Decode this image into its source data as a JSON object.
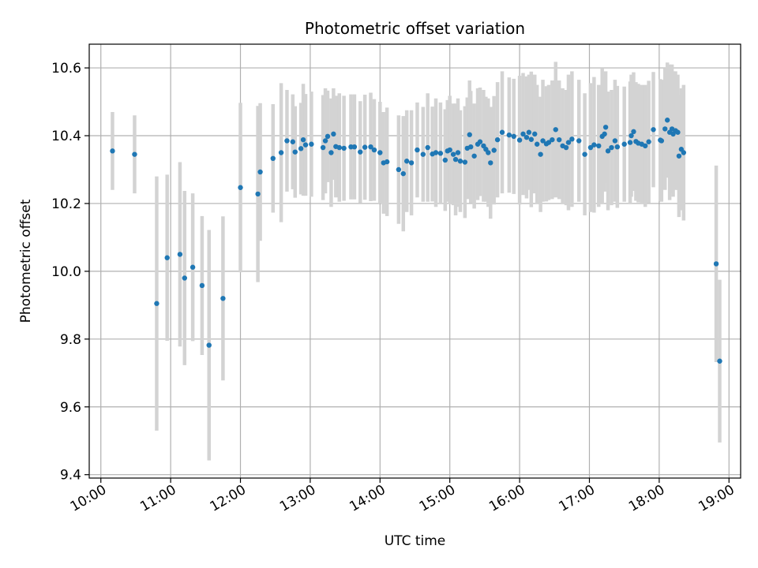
{
  "chart_data": {
    "type": "scatter",
    "title": "Photometric offset variation",
    "xlabel": "UTC time",
    "ylabel": "Photometric offset",
    "xlim": [
      "09:50",
      "19:10"
    ],
    "ylim": [
      9.39,
      10.67
    ],
    "grid": true,
    "x_ticks": [
      "10:00",
      "11:00",
      "12:00",
      "13:00",
      "14:00",
      "15:00",
      "16:00",
      "17:00",
      "18:00",
      "19:00"
    ],
    "y_ticks": [
      "9.4",
      "9.6",
      "9.8",
      "10.0",
      "10.2",
      "10.4",
      "10.6"
    ],
    "colors": {
      "marker": "#1f77b4",
      "errorbar": "#d3d3d3",
      "grid": "#b0b0b0"
    },
    "series": [
      {
        "x": [
          "10:10",
          "10:29",
          "10:48",
          "10:57",
          "11:08",
          "11:12",
          "11:19",
          "11:27",
          "11:33",
          "11:45",
          "12:00",
          "12:15",
          "12:17",
          "12:28",
          "12:35",
          "12:40",
          "12:45",
          "12:47",
          "12:52",
          "12:54",
          "12:56",
          "13:01",
          "13:11",
          "13:13",
          "13:15",
          "13:18",
          "13:20",
          "13:22",
          "13:25",
          "13:29",
          "13:35",
          "13:38",
          "13:43",
          "13:47",
          "13:52",
          "13:55",
          "14:00",
          "14:03",
          "14:06",
          "14:16",
          "14:20",
          "14:23",
          "14:27",
          "14:32",
          "14:37",
          "14:41",
          "14:45",
          "14:48",
          "14:52",
          "14:56",
          "14:58",
          "15:00",
          "15:03",
          "15:05",
          "15:07",
          "15:09",
          "15:13",
          "15:15",
          "15:17",
          "15:18",
          "15:21",
          "15:24",
          "15:26",
          "15:29",
          "15:31",
          "15:33",
          "15:35",
          "15:38",
          "15:41",
          "15:45",
          "15:51",
          "15:55",
          "16:00",
          "16:03",
          "16:06",
          "16:08",
          "16:10",
          "16:13",
          "16:15",
          "16:18",
          "16:20",
          "16:23",
          "16:25",
          "16:28",
          "16:31",
          "16:34",
          "16:37",
          "16:40",
          "16:42",
          "16:45",
          "16:51",
          "16:56",
          "17:01",
          "17:04",
          "17:08",
          "17:11",
          "17:13",
          "17:14",
          "17:16",
          "17:19",
          "17:22",
          "17:24",
          "17:30",
          "17:35",
          "17:36",
          "17:38",
          "17:40",
          "17:42",
          "17:45",
          "17:48",
          "17:51",
          "17:55",
          "18:01",
          "18:02",
          "18:05",
          "18:07",
          "18:09",
          "18:11",
          "18:12",
          "18:14",
          "18:16",
          "18:17",
          "18:19",
          "18:21",
          "18:49",
          "18:52"
        ],
        "y": [
          10.355,
          10.345,
          9.905,
          10.04,
          10.05,
          9.98,
          10.012,
          9.958,
          9.782,
          9.92,
          10.247,
          10.228,
          10.293,
          10.333,
          10.35,
          10.385,
          10.382,
          10.352,
          10.362,
          10.388,
          10.373,
          10.375,
          10.365,
          10.385,
          10.398,
          10.35,
          10.405,
          10.368,
          10.365,
          10.363,
          10.367,
          10.367,
          10.352,
          10.366,
          10.367,
          10.358,
          10.35,
          10.32,
          10.323,
          10.3,
          10.288,
          10.325,
          10.32,
          10.358,
          10.345,
          10.365,
          10.346,
          10.35,
          10.348,
          10.328,
          10.355,
          10.358,
          10.345,
          10.33,
          10.35,
          10.325,
          10.322,
          10.363,
          10.403,
          10.367,
          10.34,
          10.375,
          10.382,
          10.37,
          10.36,
          10.35,
          10.32,
          10.357,
          10.388,
          10.41,
          10.402,
          10.398,
          10.387,
          10.405,
          10.395,
          10.41,
          10.389,
          10.405,
          10.375,
          10.345,
          10.385,
          10.376,
          10.38,
          10.388,
          10.418,
          10.388,
          10.37,
          10.365,
          10.38,
          10.39,
          10.385,
          10.345,
          10.365,
          10.373,
          10.37,
          10.398,
          10.405,
          10.425,
          10.355,
          10.365,
          10.385,
          10.367,
          10.375,
          10.38,
          10.4,
          10.412,
          10.383,
          10.378,
          10.375,
          10.37,
          10.382,
          10.418,
          10.387,
          10.385,
          10.42,
          10.446,
          10.41,
          10.42,
          10.405,
          10.415,
          10.41,
          10.34,
          10.36,
          10.35,
          10.022,
          9.735
        ],
        "error": [
          0.115,
          0.115,
          0.375,
          0.245,
          0.272,
          0.257,
          0.218,
          0.205,
          0.34,
          0.242,
          0.25,
          0.26,
          0.203,
          0.16,
          0.205,
          0.15,
          0.14,
          0.135,
          0.135,
          0.165,
          0.15,
          0.155,
          0.155,
          0.155,
          0.135,
          0.16,
          0.135,
          0.15,
          0.16,
          0.155,
          0.155,
          0.155,
          0.15,
          0.155,
          0.16,
          0.15,
          0.15,
          0.15,
          0.16,
          0.16,
          0.17,
          0.15,
          0.155,
          0.14,
          0.14,
          0.16,
          0.14,
          0.16,
          0.15,
          0.15,
          0.15,
          0.16,
          0.15,
          0.165,
          0.16,
          0.15,
          0.165,
          0.15,
          0.16,
          0.165,
          0.155,
          0.165,
          0.16,
          0.165,
          0.155,
          0.16,
          0.165,
          0.16,
          0.17,
          0.18,
          0.17,
          0.17,
          0.19,
          0.18,
          0.18,
          0.17,
          0.2,
          0.175,
          0.175,
          0.17,
          0.18,
          0.17,
          0.17,
          0.175,
          0.2,
          0.175,
          0.17,
          0.17,
          0.2,
          0.2,
          0.18,
          0.18,
          0.19,
          0.2,
          0.18,
          0.2,
          0.17,
          0.165,
          0.175,
          0.17,
          0.18,
          0.18,
          0.17,
          0.18,
          0.18,
          0.175,
          0.175,
          0.175,
          0.175,
          0.18,
          0.18,
          0.17,
          0.18,
          0.18,
          0.18,
          0.17,
          0.2,
          0.19,
          0.185,
          0.175,
          0.17,
          0.18,
          0.18,
          0.2,
          0.29,
          0.24
        ]
      }
    ]
  }
}
